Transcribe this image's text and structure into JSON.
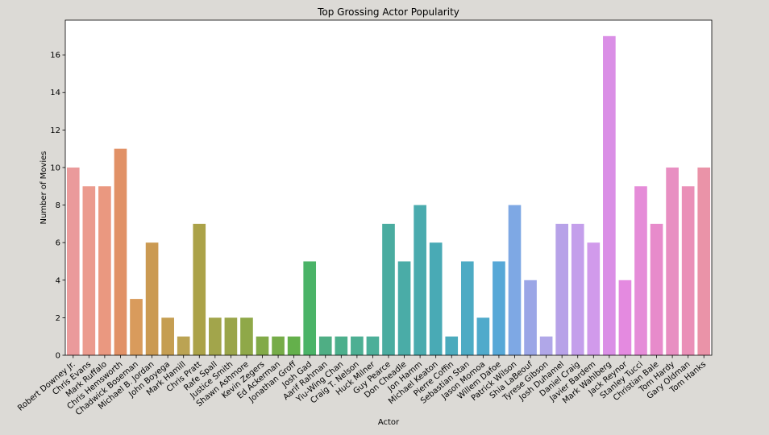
{
  "chart_data": {
    "type": "bar",
    "title": "Top Grossing Actor Popularity",
    "xlabel": "Actor",
    "ylabel": "Number of Movies",
    "ylim": [
      0,
      17.85
    ],
    "yticks": [
      0,
      2,
      4,
      6,
      8,
      10,
      12,
      14,
      16
    ],
    "grid": false,
    "categories": [
      "Robert Downey Jr.",
      "Chris Evans",
      "Mark Ruffalo",
      "Chris Hemsworth",
      "Chadwick Boseman",
      "Michael B. Jordan",
      "John Boyega",
      "Mark Hamill",
      "Chris Pratt",
      "Rafe Spall",
      "Justice Smith",
      "Shawn Ashmore",
      "Kevin Zegers",
      "Ed Ackerman",
      "Jonathan Groff",
      "Josh Gad",
      "Aarif Rahman",
      "Yiu-Wing Chan",
      "Craig T. Nelson",
      "Huck Milner",
      "Guy Pearce",
      "Don Cheadle",
      "Jon Hamm",
      "Michael Keaton",
      "Pierre Coffin",
      "Sebastian Stan",
      "Jason Momoa",
      "Willem Dafoe",
      "Patrick Wilson",
      "Shia LaBeouf",
      "Tyrese Gibson",
      "Josh Duhamel",
      "Daniel Craig",
      "Javier Bardem",
      "Mark Wahlberg",
      "Jack Reynor",
      "Stanley Tucci",
      "Christian Bale",
      "Tom Hardy",
      "Gary Oldman",
      "Tom Hanks"
    ],
    "values": [
      10,
      9,
      9,
      11,
      3,
      6,
      2,
      1,
      7,
      2,
      2,
      2,
      1,
      1,
      1,
      5,
      1,
      1,
      1,
      1,
      7,
      5,
      8,
      6,
      1,
      5,
      2,
      5,
      8,
      4,
      1,
      7,
      7,
      6,
      17,
      4,
      9,
      7,
      10,
      9,
      10
    ],
    "colors": [
      "#ea9a9b",
      "#eb9b8e",
      "#ea9880",
      "#e19166",
      "#d99b5c",
      "#cb9a52",
      "#c59e52",
      "#bba353",
      "#aba248",
      "#a2a54b",
      "#9aa54a",
      "#8fa848",
      "#82aa48",
      "#76ac48",
      "#64b04b",
      "#4ab367",
      "#4fae84",
      "#4caf8c",
      "#4daf93",
      "#4caf99",
      "#4aaca0",
      "#4aaca7",
      "#4aabae",
      "#49aab5",
      "#4babbd",
      "#4dabc4",
      "#50aacb",
      "#57a8d7",
      "#7ea8e4",
      "#9ba6e6",
      "#b0a7e8",
      "#b7a2e8",
      "#c49feb",
      "#d19aeb",
      "#da8fe6",
      "#e48ae0",
      "#e58cd8",
      "#e78bcb",
      "#e88fc2",
      "#ea90b8",
      "#ea93a8"
    ]
  }
}
